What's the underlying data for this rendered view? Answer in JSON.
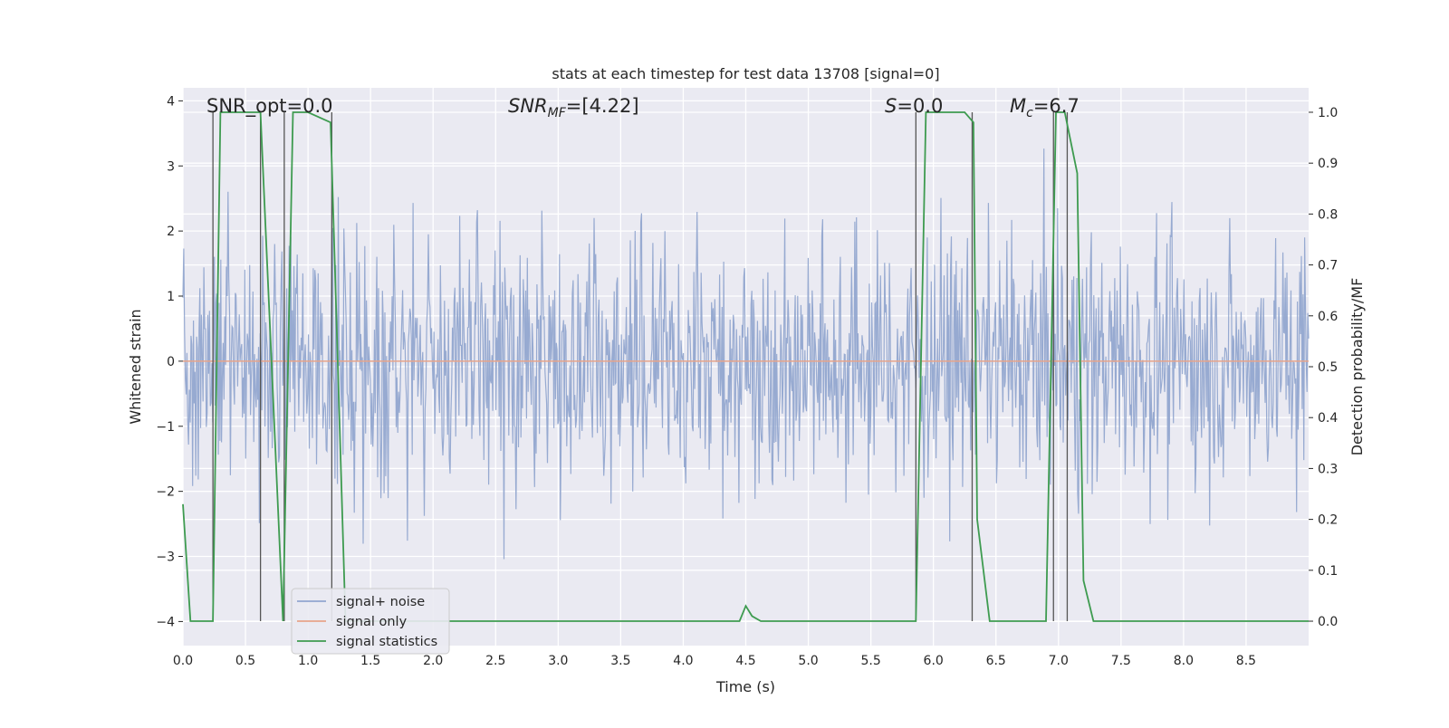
{
  "chart_data": {
    "type": "line",
    "title": "stats at each timestep for test data 13708 [signal=0]",
    "xlabel": "Time (s)",
    "ylabel_left": "Whitened strain",
    "ylabel_right": "Detection probability/MF",
    "xlim": [
      0,
      9.0
    ],
    "ylim_left": [
      -4.37,
      4.2
    ],
    "ylim_right": [
      -0.048,
      1.048
    ],
    "x_ticks": [
      "0.0",
      "0.5",
      "1.0",
      "1.5",
      "2.0",
      "2.5",
      "3.0",
      "3.5",
      "4.0",
      "4.5",
      "5.0",
      "5.5",
      "6.0",
      "6.5",
      "7.0",
      "7.5",
      "8.0",
      "8.5"
    ],
    "y_ticks_left": [
      "4",
      "3",
      "2",
      "1",
      "0",
      "−1",
      "−2",
      "−3",
      "−4"
    ],
    "y_ticks_right": [
      "1.0",
      "0.9",
      "0.8",
      "0.7",
      "0.6",
      "0.5",
      "0.4",
      "0.3",
      "0.2",
      "0.1",
      "0.0"
    ],
    "grid": true,
    "legend_location": "lower-left",
    "series": [
      {
        "name": "signal+ noise",
        "axis": "left",
        "color": "#92a6cf",
        "description_values": "whitened noise between about -3.9 and 3.9, densely sampled over 0-9 s"
      },
      {
        "name": "signal only",
        "axis": "left",
        "color": "#e7a48a",
        "x": [
          0,
          9.0
        ],
        "y": [
          0,
          0
        ]
      },
      {
        "name": "signal statistics",
        "axis": "right",
        "color": "#3e9b50",
        "x": [
          0.0,
          0.06,
          0.24,
          0.3,
          0.62,
          0.8,
          0.88,
          1.0,
          1.18,
          1.3,
          1.4,
          4.45,
          4.5,
          4.55,
          4.62,
          5.86,
          5.94,
          6.25,
          6.32,
          6.35,
          6.45,
          6.9,
          6.98,
          7.05,
          7.15,
          7.2,
          7.28,
          9.0
        ],
        "y": [
          0.23,
          0.0,
          0.0,
          1.0,
          1.0,
          0.0,
          1.0,
          1.0,
          0.98,
          0.0,
          0.0,
          0.0,
          0.03,
          0.01,
          0.0,
          0.0,
          1.0,
          1.0,
          0.98,
          0.2,
          0.0,
          0.0,
          1.0,
          1.0,
          0.88,
          0.08,
          0.0,
          0.0
        ]
      }
    ],
    "vertical_markers": [
      0.24,
      0.62,
      0.81,
      1.19,
      5.86,
      6.31,
      6.96,
      7.07
    ],
    "annotations": {
      "snr_opt": "SNR_opt=0.0",
      "snr_mf_label": "SNR",
      "snr_mf_sub": "MF",
      "snr_mf_value": "=[4.22]",
      "s_label": "S",
      "s_value": "=0.0",
      "mc_label": "M",
      "mc_sub": "c",
      "mc_value": "=6.7"
    }
  }
}
